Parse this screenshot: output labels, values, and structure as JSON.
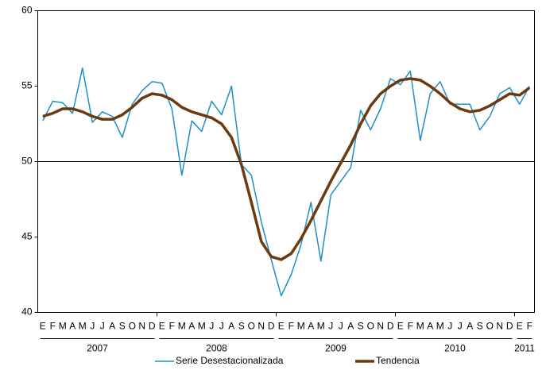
{
  "chart_data": {
    "type": "line",
    "categories": [
      "E",
      "F",
      "M",
      "A",
      "M",
      "J",
      "J",
      "A",
      "S",
      "O",
      "N",
      "D",
      "E",
      "F",
      "M",
      "A",
      "M",
      "J",
      "J",
      "A",
      "S",
      "O",
      "N",
      "D",
      "E",
      "F",
      "M",
      "A",
      "M",
      "J",
      "J",
      "A",
      "S",
      "O",
      "N",
      "D",
      "E",
      "F",
      "M",
      "A",
      "M",
      "J",
      "J",
      "A",
      "S",
      "O",
      "N",
      "D",
      "E",
      "F"
    ],
    "year_labels": [
      "2007",
      "2008",
      "2009",
      "2010",
      "2011"
    ],
    "series": [
      {
        "name": "Serie Desestacionalizada",
        "color": "#1f8fc8",
        "width": 1.5,
        "values": [
          52.7,
          54.0,
          53.9,
          53.2,
          56.2,
          52.6,
          53.3,
          53.0,
          51.6,
          53.8,
          54.7,
          55.3,
          55.2,
          53.5,
          49.1,
          52.7,
          52.0,
          54.0,
          53.1,
          55.0,
          49.8,
          49.1,
          46.0,
          43.5,
          41.1,
          42.5,
          44.5,
          47.3,
          43.4,
          47.8,
          48.7,
          49.6,
          53.4,
          52.1,
          53.5,
          55.5,
          55.1,
          56.0,
          51.4,
          54.5,
          55.3,
          53.8,
          53.8,
          53.8,
          52.1,
          53.0,
          54.5,
          54.9,
          53.8,
          55.0
        ]
      },
      {
        "name": "Tendencia",
        "color": "#6b3a10",
        "width": 3.5,
        "values": [
          53.0,
          53.2,
          53.5,
          53.5,
          53.3,
          53.0,
          52.8,
          52.8,
          53.1,
          53.6,
          54.2,
          54.5,
          54.4,
          54.1,
          53.6,
          53.3,
          53.1,
          52.9,
          52.5,
          51.6,
          49.8,
          47.3,
          44.7,
          43.7,
          43.5,
          43.9,
          44.9,
          46.1,
          47.4,
          48.7,
          49.9,
          51.1,
          52.5,
          53.7,
          54.5,
          55.0,
          55.4,
          55.5,
          55.4,
          55.0,
          54.5,
          53.9,
          53.5,
          53.3,
          53.4,
          53.7,
          54.1,
          54.5,
          54.4,
          54.9
        ]
      }
    ],
    "ylim": [
      40,
      60
    ],
    "yticks": [
      40,
      45,
      50,
      55,
      60
    ],
    "reference_line": 50,
    "grid": false,
    "legend": "bottom"
  }
}
